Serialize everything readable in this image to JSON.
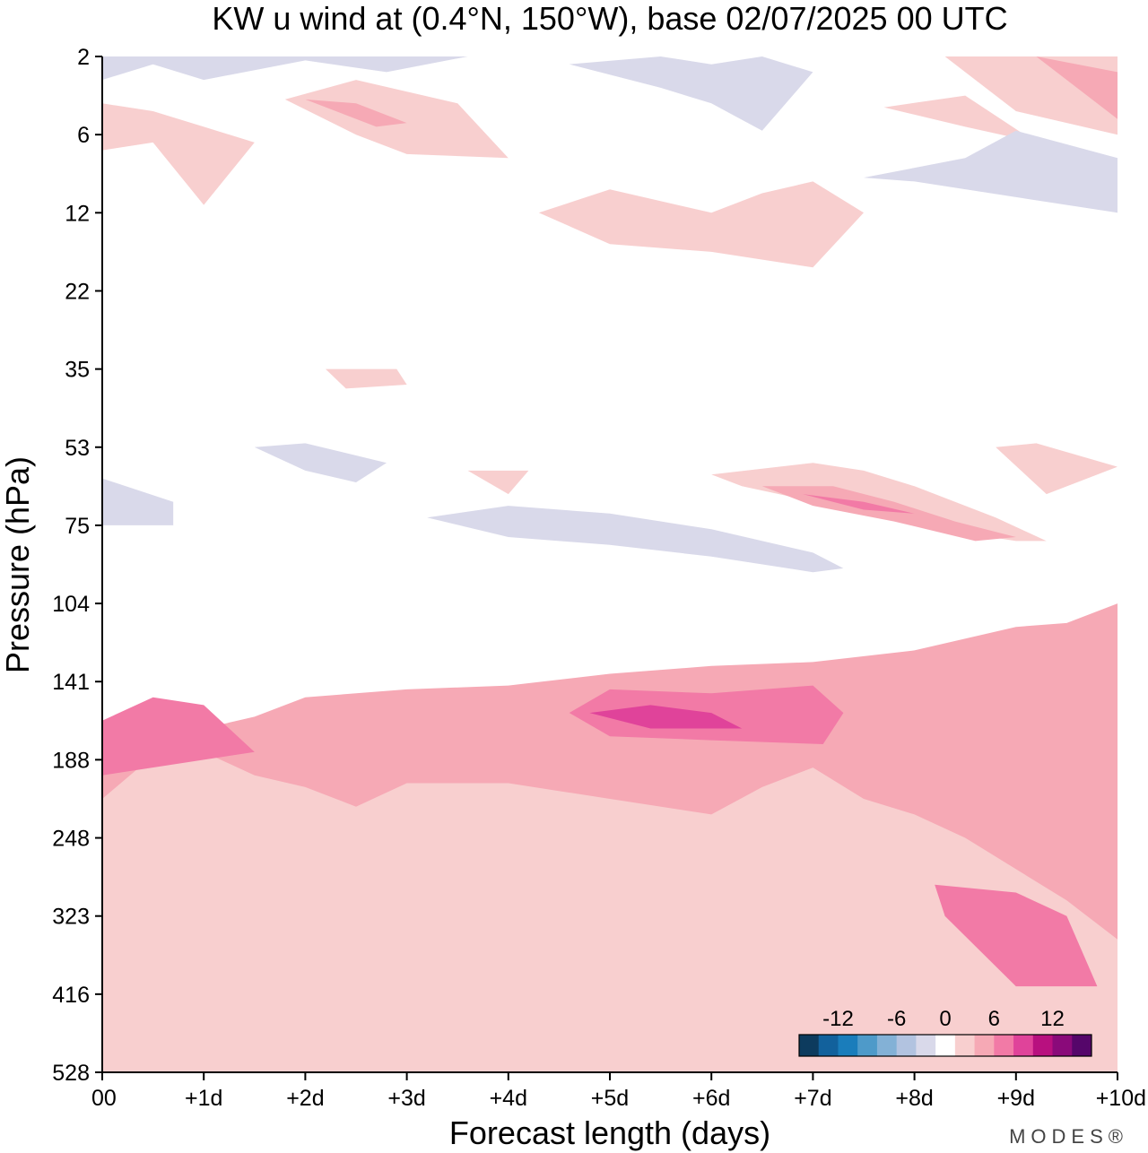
{
  "chart_data": {
    "type": "heatmap",
    "title": "KW u wind at (0.4°N, 150°W),  base 02/07/2025  00 UTC",
    "xlabel": "Forecast length (days)",
    "ylabel": "Pressure (hPa)",
    "x_ticks": [
      "00",
      "+1d",
      "+2d",
      "+3d",
      "+4d",
      "+5d",
      "+6d",
      "+7d",
      "+8d",
      "+9d",
      "+10d"
    ],
    "xlim": [
      0,
      10
    ],
    "y_ticks": [
      "2",
      "6",
      "12",
      "22",
      "35",
      "53",
      "75",
      "104",
      "141",
      "188",
      "248",
      "323",
      "416",
      "528"
    ],
    "y_order": "top-to-bottom",
    "colorbar": {
      "labels": [
        "-12",
        "-6",
        "0",
        "6",
        "12"
      ],
      "levels": [
        -14,
        -12,
        -10,
        -8,
        -6,
        -4,
        -2,
        2,
        4,
        6,
        8,
        10,
        12,
        14
      ],
      "colors": [
        "#0d3b5e",
        "#12619c",
        "#1a7dbb",
        "#4e9ac9",
        "#83b1d6",
        "#b2c3e0",
        "#d9d9ea",
        "#ffffff",
        "#f8cfcf",
        "#f6a9b5",
        "#f27aa6",
        "#e0439a",
        "#b8107f",
        "#8a0a7a",
        "#55066a"
      ]
    },
    "regions": [
      {
        "level": 2,
        "x": [
          0.0,
          0.5,
          1.0,
          2.0,
          3.0,
          4.0,
          5.0,
          6.0,
          7.0,
          8.0,
          9.0,
          10.0,
          10.0,
          9.0,
          8.0,
          7.5,
          7.0,
          6.5,
          6.0,
          5.0,
          4.0,
          3.0,
          2.0,
          1.5,
          1.0,
          0.5,
          0.0
        ],
        "y": [
          9.05,
          8.7,
          8.8,
          8.6,
          8.5,
          8.35,
          8.25,
          8.1,
          8.05,
          7.9,
          7.65,
          7.1,
          13.95,
          13.9,
          13.75,
          13.5,
          13.55,
          13.2,
          13.7,
          13.8,
          13.55,
          13.6,
          13.85,
          13.9,
          13.75,
          13.7,
          14.0
        ]
      },
      {
        "level": 4,
        "x": [
          0.0,
          0.5,
          1.0,
          1.5,
          2.0,
          3.0,
          4.0,
          5.0,
          6.0,
          7.0,
          8.0,
          9.0,
          9.5,
          10.0,
          10.0,
          9.5,
          9.0,
          8.5,
          8.0,
          7.5,
          7.0,
          6.5,
          6.0,
          5.0,
          4.0,
          3.0,
          2.5,
          2.0,
          1.5,
          1.0,
          0.5,
          0.0
        ],
        "y": [
          8.85,
          8.5,
          8.6,
          8.45,
          8.2,
          8.1,
          8.05,
          7.9,
          7.8,
          7.75,
          7.6,
          7.3,
          7.25,
          7.0,
          11.3,
          10.8,
          10.4,
          10.0,
          9.7,
          9.5,
          9.1,
          9.35,
          9.7,
          9.5,
          9.3,
          9.3,
          9.6,
          9.35,
          9.2,
          8.9,
          8.95,
          9.5
        ]
      },
      {
        "level": 6,
        "x": [
          0.0,
          0.5,
          1.0,
          1.5,
          0.0
        ],
        "y": [
          8.5,
          8.2,
          8.3,
          8.9,
          9.2
        ]
      },
      {
        "level": 6,
        "x": [
          4.6,
          5.0,
          6.0,
          7.0,
          7.3,
          7.1,
          6.0,
          5.0,
          4.6
        ],
        "y": [
          8.4,
          8.1,
          8.15,
          8.05,
          8.4,
          8.8,
          8.75,
          8.7,
          8.4
        ]
      },
      {
        "level": 6,
        "x": [
          8.2,
          9.0,
          9.5,
          9.8,
          9.0,
          8.3,
          8.2
        ],
        "y": [
          10.6,
          10.7,
          11.0,
          11.9,
          11.9,
          11.0,
          10.6
        ]
      },
      {
        "level": 8,
        "x": [
          4.8,
          5.4,
          6.0,
          6.3,
          5.4,
          4.8
        ],
        "y": [
          8.4,
          8.3,
          8.4,
          8.6,
          8.6,
          8.4
        ]
      },
      {
        "level": 2,
        "x": [
          6.0,
          7.0,
          7.5,
          8.0,
          8.8,
          9.3,
          9.0,
          8.0,
          7.2,
          6.3,
          6.0
        ],
        "y": [
          5.35,
          5.2,
          5.3,
          5.5,
          5.9,
          6.2,
          6.2,
          6.0,
          5.75,
          5.5,
          5.35
        ]
      },
      {
        "level": 4,
        "x": [
          6.5,
          7.2,
          7.8,
          8.4,
          9.0,
          8.6,
          7.8,
          7.0,
          6.5
        ],
        "y": [
          5.5,
          5.5,
          5.7,
          5.95,
          6.15,
          6.2,
          5.95,
          5.75,
          5.5
        ]
      },
      {
        "level": 6,
        "x": [
          6.9,
          7.5,
          8.0,
          7.5,
          6.9
        ],
        "y": [
          5.6,
          5.7,
          5.85,
          5.8,
          5.6
        ]
      },
      {
        "level": -2,
        "x": [
          3.2,
          4.0,
          5.0,
          6.0,
          7.0,
          7.3,
          7.0,
          6.0,
          5.0,
          4.0,
          3.2
        ],
        "y": [
          5.9,
          5.75,
          5.85,
          6.05,
          6.35,
          6.55,
          6.6,
          6.4,
          6.25,
          6.15,
          5.9
        ]
      },
      {
        "level": -2,
        "x": [
          1.5,
          2.0,
          2.8,
          2.5,
          2.0,
          1.5
        ],
        "y": [
          5.0,
          4.95,
          5.2,
          5.45,
          5.3,
          5.0
        ]
      },
      {
        "level": -2,
        "x": [
          0.0,
          0.7,
          0.7,
          0.0
        ],
        "y": [
          5.4,
          5.7,
          6.0,
          6.0
        ]
      },
      {
        "level": -2,
        "x": [
          0.0,
          1.0,
          2.0,
          3.0,
          3.6,
          2.8,
          2.0,
          1.0,
          0.5,
          0.0
        ],
        "y": [
          -0.1,
          -0.1,
          -0.1,
          -0.1,
          -0.1,
          0.2,
          0.05,
          0.3,
          0.1,
          0.3
        ]
      },
      {
        "level": -2,
        "x": [
          4.6,
          5.5,
          6.0,
          6.5,
          7.0,
          6.5,
          6.0,
          5.5,
          4.6
        ],
        "y": [
          0.1,
          -0.1,
          0.1,
          -0.1,
          0.2,
          0.95,
          0.6,
          0.4,
          0.1
        ]
      },
      {
        "level": -2,
        "x": [
          7.5,
          8.5,
          9.0,
          10.0,
          10.0,
          9.0,
          8.0,
          7.5
        ],
        "y": [
          1.55,
          1.3,
          0.95,
          1.3,
          2.0,
          1.8,
          1.6,
          1.55
        ]
      },
      {
        "level": 2,
        "x": [
          1.8,
          2.5,
          3.5,
          4.0,
          3.0,
          2.5,
          1.8
        ],
        "y": [
          0.55,
          0.3,
          0.6,
          1.3,
          1.25,
          1.0,
          0.55
        ]
      },
      {
        "level": 2,
        "x": [
          0.0,
          0.5,
          1.0,
          1.5,
          1.0,
          0.5,
          0.0
        ],
        "y": [
          0.6,
          0.7,
          0.9,
          1.1,
          1.9,
          1.1,
          1.2
        ]
      },
      {
        "level": 2,
        "x": [
          4.3,
          5.0,
          6.0,
          6.5,
          7.0,
          7.5,
          7.0,
          6.0,
          5.0,
          4.3
        ],
        "y": [
          2.0,
          1.7,
          2.0,
          1.75,
          1.6,
          2.0,
          2.7,
          2.5,
          2.4,
          2.0
        ]
      },
      {
        "level": 2,
        "x": [
          7.7,
          8.5,
          9.2,
          8.5,
          7.7
        ],
        "y": [
          0.65,
          0.5,
          1.1,
          0.9,
          0.65
        ]
      },
      {
        "level": 2,
        "x": [
          8.3,
          9.0,
          9.0,
          10.0,
          10.0,
          9.0,
          8.3
        ],
        "y": [
          -0.1,
          -0.1,
          -0.1,
          -0.1,
          1.0,
          0.7,
          -0.1
        ]
      },
      {
        "level": 2,
        "x": [
          2.2,
          2.9,
          3.0,
          2.4,
          2.2
        ],
        "y": [
          4.0,
          4.0,
          4.2,
          4.25,
          4.0
        ]
      },
      {
        "level": 2,
        "x": [
          3.6,
          4.2,
          4.0,
          3.6
        ],
        "y": [
          5.3,
          5.3,
          5.6,
          5.3
        ]
      },
      {
        "level": 2,
        "x": [
          8.8,
          9.2,
          10.0,
          9.3,
          8.8
        ],
        "y": [
          5.0,
          4.95,
          5.25,
          5.6,
          5.0
        ]
      },
      {
        "level": 4,
        "x": [
          2.0,
          2.5,
          3.0,
          2.7,
          2.0
        ],
        "y": [
          0.55,
          0.6,
          0.85,
          0.9,
          0.55
        ]
      },
      {
        "level": 4,
        "x": [
          9.2,
          10.0,
          10.0,
          9.2
        ],
        "y": [
          -0.1,
          0.2,
          0.8,
          -0.1
        ]
      }
    ]
  },
  "branding": {
    "text": "MODES®"
  }
}
